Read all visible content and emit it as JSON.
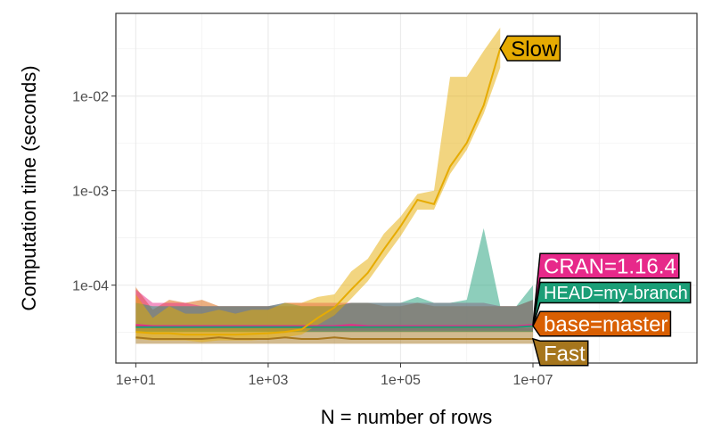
{
  "chart_data": {
    "type": "line",
    "xlabel": "N = number of rows",
    "ylabel": "Computation time (seconds)",
    "x_scale": "log10",
    "y_scale": "log10",
    "xlim": [
      5,
      3000000000.0
    ],
    "ylim": [
      1.5e-05,
      0.075
    ],
    "x_ticks": [
      {
        "value": 10,
        "label": "1e+01"
      },
      {
        "value": 1000,
        "label": "1e+03"
      },
      {
        "value": 100000,
        "label": "1e+05"
      },
      {
        "value": 10000000,
        "label": "1e+07"
      }
    ],
    "y_ticks": [
      {
        "value": 0.0001,
        "label": "1e-04"
      },
      {
        "value": 0.001,
        "label": "1e-03"
      },
      {
        "value": 0.01,
        "label": "1e-02"
      }
    ],
    "grid": true,
    "legend": "none (direct labels)",
    "series": [
      {
        "name": "Slow",
        "color": "#E6AB02",
        "text_color": "#000000",
        "x": [
          10,
          18,
          32,
          56,
          100,
          180,
          320,
          560,
          1000,
          1800,
          3200,
          5600,
          10000,
          18000,
          32000,
          56000,
          100000,
          180000,
          320000,
          560000,
          1000000,
          1800000,
          3200000
        ],
        "median": [
          3.2e-05,
          3.1e-05,
          3.1e-05,
          3e-05,
          3e-05,
          3e-05,
          3e-05,
          3.05e-05,
          3.1e-05,
          3.2e-05,
          3.4e-05,
          4.5e-05,
          5.8e-05,
          9e-05,
          0.000135,
          0.00024,
          0.00042,
          0.0008,
          0.00072,
          0.0018,
          0.0032,
          0.008,
          0.032
        ],
        "min": [
          2.7e-05,
          2.6e-05,
          2.6e-05,
          2.6e-05,
          2.5e-05,
          2.6e-05,
          2.6e-05,
          2.6e-05,
          2.7e-05,
          2.8e-05,
          3e-05,
          3.8e-05,
          4.8e-05,
          7.2e-05,
          0.00011,
          0.00019,
          0.00033,
          0.00063,
          0.00063,
          0.0015,
          0.0027,
          0.0065,
          0.02
        ],
        "max": [
          8e-05,
          4.5e-05,
          6e-05,
          5e-05,
          5e-05,
          5.5e-05,
          5e-05,
          5.5e-05,
          5.5e-05,
          6.5e-05,
          6.5e-05,
          7.5e-05,
          8e-05,
          0.00014,
          0.00019,
          0.00035,
          0.00053,
          0.00092,
          0.001,
          0.016,
          0.016,
          0.03,
          0.053
        ]
      },
      {
        "name": "CRAN=1.16.4",
        "color": "#E7298A",
        "text_color": "#ffffff",
        "x": [
          10,
          18,
          32,
          56,
          100,
          180,
          320,
          560,
          1000,
          1800,
          3200,
          5600,
          10000,
          18000,
          32000,
          56000,
          100000,
          180000,
          320000,
          560000,
          1000000,
          1800000,
          3200000,
          5600000,
          10000000
        ],
        "median": [
          3.8e-05,
          3.7e-05,
          3.7e-05,
          3.7e-05,
          3.7e-05,
          3.7e-05,
          3.7e-05,
          3.7e-05,
          3.7e-05,
          3.7e-05,
          3.7e-05,
          3.7e-05,
          3.7e-05,
          3.8e-05,
          3.7e-05,
          3.7e-05,
          3.7e-05,
          3.7e-05,
          3.7e-05,
          3.7e-05,
          3.7e-05,
          3.7e-05,
          3.7e-05,
          3.7e-05,
          3.8e-05
        ],
        "min": [
          3.3e-05,
          3.3e-05,
          3.3e-05,
          3.3e-05,
          3.3e-05,
          3.3e-05,
          3.3e-05,
          3.3e-05,
          3.3e-05,
          3.3e-05,
          3.3e-05,
          3.3e-05,
          3.3e-05,
          3.3e-05,
          3.3e-05,
          3.3e-05,
          3.3e-05,
          3.3e-05,
          3.3e-05,
          3.3e-05,
          3.3e-05,
          3.3e-05,
          3.3e-05,
          3.3e-05,
          3.3e-05
        ],
        "max": [
          9e-05,
          6.5e-05,
          6.5e-05,
          6.5e-05,
          6e-05,
          6e-05,
          6e-05,
          6e-05,
          6e-05,
          6.5e-05,
          6.5e-05,
          6.5e-05,
          6.5e-05,
          6.5e-05,
          6.5e-05,
          6.5e-05,
          6.5e-05,
          6.5e-05,
          6.5e-05,
          6.5e-05,
          6.5e-05,
          6.5e-05,
          6e-05,
          6e-05,
          7e-05
        ]
      },
      {
        "name": "HEAD=my-branch",
        "color": "#1B9E77",
        "text_color": "#ffffff",
        "x": [
          10,
          18,
          32,
          56,
          100,
          180,
          320,
          560,
          1000,
          1800,
          3200,
          5600,
          10000,
          18000,
          32000,
          56000,
          100000,
          180000,
          320000,
          560000,
          1000000,
          1800000,
          3200000,
          5600000,
          10000000
        ],
        "median": [
          3.6e-05,
          3.6e-05,
          3.6e-05,
          3.6e-05,
          3.6e-05,
          3.6e-05,
          3.6e-05,
          3.6e-05,
          3.6e-05,
          3.6e-05,
          3.6e-05,
          3.6e-05,
          3.6e-05,
          3.6e-05,
          3.6e-05,
          3.6e-05,
          3.6e-05,
          3.6e-05,
          3.6e-05,
          3.6e-05,
          3.6e-05,
          3.6e-05,
          3.6e-05,
          3.6e-05,
          3.7e-05
        ],
        "min": [
          3.2e-05,
          3.2e-05,
          3.2e-05,
          3.2e-05,
          3.2e-05,
          3.2e-05,
          3.2e-05,
          3.2e-05,
          3.2e-05,
          3.2e-05,
          3.2e-05,
          3.2e-05,
          3.2e-05,
          3.2e-05,
          3.2e-05,
          3.2e-05,
          3.2e-05,
          3.2e-05,
          3.2e-05,
          3.2e-05,
          3.2e-05,
          3.2e-05,
          3.2e-05,
          3.2e-05,
          3.2e-05
        ],
        "max": [
          6.5e-05,
          6e-05,
          6e-05,
          6e-05,
          6e-05,
          6e-05,
          6e-05,
          6e-05,
          6e-05,
          6.5e-05,
          6e-05,
          6e-05,
          6e-05,
          6.5e-05,
          6.5e-05,
          6.5e-05,
          6.5e-05,
          7.5e-05,
          6.5e-05,
          6.5e-05,
          7e-05,
          0.0004,
          6e-05,
          6e-05,
          0.0001
        ]
      },
      {
        "name": "base=master",
        "color": "#D95F02",
        "text_color": "#ffffff",
        "x": [
          10,
          18,
          32,
          56,
          100,
          180,
          320,
          560,
          1000,
          1800,
          3200,
          5600,
          10000,
          18000,
          32000,
          56000,
          100000,
          180000,
          320000,
          560000,
          1000000,
          1800000,
          3200000,
          5600000,
          10000000
        ],
        "median": [
          3.7e-05,
          3.6e-05,
          3.6e-05,
          3.6e-05,
          3.6e-05,
          3.6e-05,
          3.6e-05,
          3.6e-05,
          3.6e-05,
          3.6e-05,
          3.6e-05,
          3.6e-05,
          3.6e-05,
          3.6e-05,
          3.6e-05,
          3.6e-05,
          3.6e-05,
          3.6e-05,
          3.6e-05,
          3.6e-05,
          3.6e-05,
          3.6e-05,
          3.6e-05,
          3.6e-05,
          3.7e-05
        ],
        "min": [
          3.2e-05,
          3.2e-05,
          3.2e-05,
          3.2e-05,
          3.2e-05,
          3.2e-05,
          3.2e-05,
          3.2e-05,
          3.2e-05,
          3.2e-05,
          3.2e-05,
          3.2e-05,
          3.2e-05,
          3.2e-05,
          3.2e-05,
          3.2e-05,
          3.2e-05,
          3.2e-05,
          3.2e-05,
          3.2e-05,
          3.2e-05,
          3.2e-05,
          3.2e-05,
          3.2e-05,
          3.2e-05
        ],
        "max": [
          9.5e-05,
          5.5e-05,
          7e-05,
          6.5e-05,
          7e-05,
          6e-05,
          6e-05,
          6e-05,
          6e-05,
          6e-05,
          6e-05,
          6e-05,
          6e-05,
          6.5e-05,
          6.5e-05,
          6e-05,
          6e-05,
          6.5e-05,
          6e-05,
          6e-05,
          6e-05,
          6e-05,
          6e-05,
          6e-05,
          7e-05
        ]
      },
      {
        "name": "Fast",
        "color": "#A6761D",
        "text_color": "#ffffff",
        "x": [
          10,
          18,
          32,
          56,
          100,
          180,
          320,
          560,
          1000,
          1800,
          3200,
          5600,
          10000,
          18000,
          32000,
          56000,
          100000,
          180000,
          320000,
          560000,
          1000000,
          1800000,
          3200000,
          5600000,
          10000000
        ],
        "median": [
          2.8e-05,
          2.7e-05,
          2.7e-05,
          2.7e-05,
          2.7e-05,
          2.8e-05,
          2.7e-05,
          2.7e-05,
          2.7e-05,
          2.8e-05,
          2.7e-05,
          2.7e-05,
          2.8e-05,
          2.7e-05,
          2.7e-05,
          2.7e-05,
          2.7e-05,
          2.7e-05,
          2.7e-05,
          2.7e-05,
          2.7e-05,
          2.7e-05,
          2.7e-05,
          2.7e-05,
          2.7e-05
        ],
        "min": [
          2.4e-05,
          2.4e-05,
          2.4e-05,
          2.4e-05,
          2.4e-05,
          2.4e-05,
          2.4e-05,
          2.4e-05,
          2.4e-05,
          2.4e-05,
          2.4e-05,
          2.4e-05,
          2.4e-05,
          2.4e-05,
          2.4e-05,
          2.4e-05,
          2.4e-05,
          2.4e-05,
          2.4e-05,
          2.4e-05,
          2.4e-05,
          2.4e-05,
          2.4e-05,
          2.4e-05,
          2.4e-05
        ],
        "max": [
          3.5e-05,
          3.5e-05,
          3.5e-05,
          3.5e-05,
          3.5e-05,
          3.5e-05,
          3.5e-05,
          3.5e-05,
          3.5e-05,
          3.5e-05,
          3.5e-05,
          3.5e-05,
          3.5e-05,
          3.5e-05,
          3.5e-05,
          3.5e-05,
          3.5e-05,
          3.5e-05,
          3.5e-05,
          3.5e-05,
          3.5e-05,
          3.5e-05,
          3.5e-05,
          3.5e-05,
          3.5e-05
        ]
      }
    ]
  }
}
